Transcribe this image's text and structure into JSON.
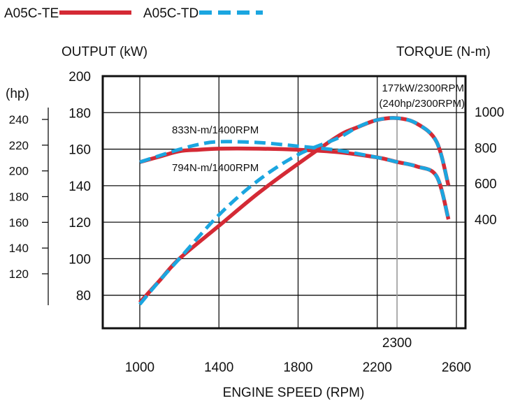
{
  "chart_data": {
    "type": "line",
    "title": "",
    "legend": {
      "placement": "top-left",
      "items": [
        {
          "label": "A05C-TE",
          "color": "#d42a35",
          "style": "solid"
        },
        {
          "label": "A05C-TD",
          "color": "#1ba6e0",
          "style": "dashed"
        }
      ]
    },
    "xlabel": "ENGINE SPEED (RPM)",
    "x_ticks": [
      "1000",
      "1400",
      "1800",
      "2200",
      "2600"
    ],
    "x_extra_tick": "2300",
    "xlim": [
      1000,
      2600
    ],
    "y_left_label": "OUTPUT (kW)",
    "y_left_ticks": [
      "200",
      "180",
      "160",
      "140",
      "120",
      "100",
      "80"
    ],
    "y_left_lim": [
      60,
      200
    ],
    "y_hp_label": "(hp)",
    "y_hp_ticks": [
      "240",
      "220",
      "200",
      "180",
      "160",
      "140",
      "120"
    ],
    "y_right_label": "TORQUE (N-m)",
    "y_right_ticks": [
      "1000",
      "800",
      "600",
      "400"
    ],
    "grid": true,
    "annotations": {
      "peak_power_line1": "177kW/2300RPM",
      "peak_power_line2": "(240hp/2300RPM)",
      "torque_td": "833N-m/1400RPM",
      "torque_te": "794N-m/1400RPM"
    },
    "series": [
      {
        "name": "A05C-TE",
        "quantity": "output",
        "x": [
          1000,
          1100,
          1200,
          1400,
          1600,
          1800,
          2000,
          2100,
          2200,
          2300,
          2400,
          2500,
          2560
        ],
        "y": [
          76,
          88,
          100,
          118,
          136,
          152,
          167,
          172,
          176,
          177,
          174,
          164,
          140
        ]
      },
      {
        "name": "A05C-TE",
        "quantity": "torque",
        "x": [
          1000,
          1100,
          1200,
          1300,
          1400,
          1600,
          1800,
          2000,
          2200,
          2300,
          2400,
          2500,
          2560
        ],
        "y": [
          719,
          750,
          780,
          788,
          794,
          794,
          788,
          775,
          745,
          720,
          695,
          640,
          400
        ]
      },
      {
        "name": "A05C-TD",
        "quantity": "output",
        "x": [
          1000,
          1100,
          1200,
          1400,
          1600,
          1800,
          2000,
          2100,
          2200,
          2300,
          2400,
          2500,
          2560
        ],
        "y": [
          75,
          88,
          100,
          124,
          143,
          157,
          166,
          172,
          176,
          177,
          174,
          164,
          140
        ]
      },
      {
        "name": "A05C-TD",
        "quantity": "torque",
        "x": [
          1000,
          1100,
          1200,
          1300,
          1400,
          1600,
          1800,
          2000,
          2200,
          2300,
          2400,
          2500,
          2560
        ],
        "y": [
          719,
          755,
          790,
          818,
          833,
          828,
          808,
          785,
          745,
          720,
          695,
          640,
          400
        ]
      }
    ]
  }
}
